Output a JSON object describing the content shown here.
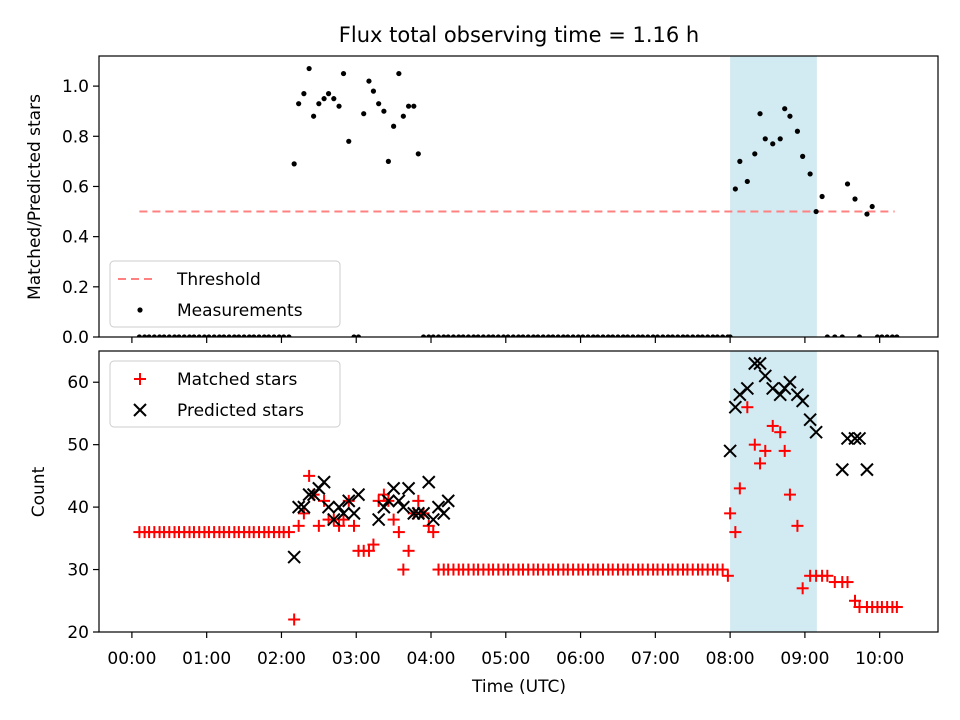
{
  "chart_data": {
    "type": "scatter",
    "title": "Flux total observing time = 1.16 h",
    "xlabel": "Time (UTC)",
    "x_unit": "hours",
    "xticks": [
      {
        "v": 0,
        "label": "00:00"
      },
      {
        "v": 1,
        "label": "01:00"
      },
      {
        "v": 2,
        "label": "02:00"
      },
      {
        "v": 3,
        "label": "03:00"
      },
      {
        "v": 4,
        "label": "04:00"
      },
      {
        "v": 5,
        "label": "05:00"
      },
      {
        "v": 6,
        "label": "06:00"
      },
      {
        "v": 7,
        "label": "07:00"
      },
      {
        "v": 8,
        "label": "08:00"
      },
      {
        "v": 9,
        "label": "09:00"
      },
      {
        "v": 10,
        "label": "10:00"
      }
    ],
    "xlim": [
      -0.44,
      10.78
    ],
    "highlight_span": {
      "x0": 8.0,
      "x1": 9.16,
      "color": "#add8e6"
    },
    "panels": [
      {
        "ylabel": "Matched/Predicted stars",
        "ylim": [
          0,
          1.12
        ],
        "yticks": [
          "0.0",
          "0.2",
          "0.4",
          "0.6",
          "0.8",
          "1.0"
        ],
        "ytick_values": [
          0,
          0.2,
          0.4,
          0.6,
          0.8,
          1.0
        ],
        "legend_position": "lower-left",
        "series": [
          {
            "name": "Threshold",
            "kind": "line",
            "color": "#ff8080",
            "x": [
              0.1,
              10.2
            ],
            "y": [
              0.5,
              0.5
            ]
          },
          {
            "name": "Measurements",
            "kind": "dot",
            "color": "#000000",
            "x": [
              0.1,
              0.17,
              0.23,
              0.3,
              0.37,
              0.43,
              0.5,
              0.57,
              0.63,
              0.7,
              0.77,
              0.83,
              0.9,
              0.97,
              1.03,
              1.1,
              1.17,
              1.23,
              1.3,
              1.37,
              1.43,
              1.5,
              1.57,
              1.63,
              1.7,
              1.77,
              1.83,
              1.9,
              1.97,
              2.03,
              2.1,
              2.17,
              2.23,
              2.3,
              2.37,
              2.43,
              2.5,
              2.57,
              2.63,
              2.7,
              2.77,
              2.83,
              2.9,
              2.97,
              3.03,
              3.1,
              3.17,
              3.23,
              3.3,
              3.37,
              3.43,
              3.5,
              3.57,
              3.63,
              3.7,
              3.77,
              3.83,
              3.9,
              3.97,
              4.03,
              4.1,
              4.17,
              4.23,
              4.3,
              4.37,
              4.43,
              4.5,
              4.57,
              4.63,
              4.7,
              4.77,
              4.83,
              4.9,
              4.97,
              5.03,
              5.1,
              5.17,
              5.23,
              5.3,
              5.37,
              5.43,
              5.5,
              5.57,
              5.63,
              5.7,
              5.77,
              5.83,
              5.9,
              5.97,
              6.03,
              6.1,
              6.17,
              6.23,
              6.3,
              6.37,
              6.43,
              6.5,
              6.57,
              6.63,
              6.7,
              6.77,
              6.83,
              6.9,
              6.97,
              7.03,
              7.1,
              7.17,
              7.23,
              7.3,
              7.37,
              7.43,
              7.5,
              7.57,
              7.63,
              7.7,
              7.77,
              7.83,
              7.9,
              7.97,
              8.0,
              8.07,
              8.13,
              8.23,
              8.33,
              8.4,
              8.47,
              8.57,
              8.67,
              8.73,
              8.8,
              8.9,
              8.97,
              9.07,
              9.15,
              9.23,
              9.3,
              9.4,
              9.5,
              9.57,
              9.67,
              9.73,
              9.83,
              9.9,
              9.97,
              10.03,
              10.1,
              10.17,
              10.23
            ],
            "y": [
              0,
              0,
              0,
              0,
              0,
              0,
              0,
              0,
              0,
              0,
              0,
              0,
              0,
              0,
              0,
              0,
              0,
              0,
              0,
              0,
              0,
              0,
              0,
              0,
              0,
              0,
              0,
              0,
              0,
              0,
              0,
              0.69,
              0.93,
              0.97,
              1.07,
              0.88,
              0.93,
              0.95,
              0.97,
              0.95,
              0.92,
              1.05,
              0.78,
              0,
              0,
              0.89,
              1.02,
              0.98,
              0.93,
              0.9,
              0.7,
              0.84,
              1.05,
              0.88,
              0.92,
              0.92,
              0.73,
              0,
              0,
              0,
              0,
              0,
              0,
              0,
              0,
              0,
              0,
              0,
              0,
              0,
              0,
              0,
              0,
              0,
              0,
              0,
              0,
              0,
              0,
              0,
              0,
              0,
              0,
              0,
              0,
              0,
              0,
              0,
              0,
              0,
              0,
              0,
              0,
              0,
              0,
              0,
              0,
              0,
              0,
              0,
              0,
              0,
              0,
              0,
              0,
              0,
              0,
              0,
              0,
              0,
              0,
              0,
              0,
              0,
              0,
              0,
              0,
              0,
              0,
              0,
              0.59,
              0.7,
              0.62,
              0.73,
              0.89,
              0.79,
              0.77,
              0.79,
              0.91,
              0.88,
              0.82,
              0.72,
              0.65,
              0.5,
              0.56,
              0,
              0,
              0,
              0.61,
              0.55,
              0,
              0.49,
              0.52,
              0,
              0,
              0,
              0,
              0
            ]
          }
        ]
      },
      {
        "ylabel": "Count",
        "ylim": [
          20,
          65
        ],
        "yticks": [
          "20",
          "30",
          "40",
          "50",
          "60"
        ],
        "ytick_values": [
          20,
          30,
          40,
          50,
          60
        ],
        "legend_position": "upper-left",
        "series": [
          {
            "name": "Matched stars",
            "kind": "plus",
            "color": "#ff0000",
            "x": [
              0.1,
              0.17,
              0.23,
              0.3,
              0.37,
              0.43,
              0.5,
              0.57,
              0.63,
              0.7,
              0.77,
              0.83,
              0.9,
              0.97,
              1.03,
              1.1,
              1.17,
              1.23,
              1.3,
              1.37,
              1.43,
              1.5,
              1.57,
              1.63,
              1.7,
              1.77,
              1.83,
              1.9,
              1.97,
              2.03,
              2.1,
              2.17,
              2.23,
              2.3,
              2.37,
              2.43,
              2.5,
              2.57,
              2.63,
              2.7,
              2.77,
              2.83,
              2.9,
              2.97,
              3.03,
              3.1,
              3.17,
              3.23,
              3.3,
              3.37,
              3.43,
              3.5,
              3.57,
              3.63,
              3.7,
              3.77,
              3.83,
              3.9,
              3.97,
              4.03,
              4.1,
              4.17,
              4.23,
              4.3,
              4.37,
              4.43,
              4.5,
              4.57,
              4.63,
              4.7,
              4.77,
              4.83,
              4.9,
              4.97,
              5.03,
              5.1,
              5.17,
              5.23,
              5.3,
              5.37,
              5.43,
              5.5,
              5.57,
              5.63,
              5.7,
              5.77,
              5.83,
              5.9,
              5.97,
              6.03,
              6.1,
              6.17,
              6.23,
              6.3,
              6.37,
              6.43,
              6.5,
              6.57,
              6.63,
              6.7,
              6.77,
              6.83,
              6.9,
              6.97,
              7.03,
              7.1,
              7.17,
              7.23,
              7.3,
              7.37,
              7.43,
              7.5,
              7.57,
              7.63,
              7.7,
              7.77,
              7.83,
              7.9,
              7.97,
              8.0,
              8.07,
              8.13,
              8.23,
              8.33,
              8.4,
              8.47,
              8.57,
              8.67,
              8.73,
              8.8,
              8.9,
              8.97,
              9.07,
              9.15,
              9.23,
              9.3,
              9.4,
              9.5,
              9.57,
              9.67,
              9.73,
              9.83,
              9.9,
              9.97,
              10.03,
              10.1,
              10.17,
              10.23
            ],
            "y": [
              36,
              36,
              36,
              36,
              36,
              36,
              36,
              36,
              36,
              36,
              36,
              36,
              36,
              36,
              36,
              36,
              36,
              36,
              36,
              36,
              36,
              36,
              36,
              36,
              36,
              36,
              36,
              36,
              36,
              36,
              36,
              22,
              37,
              39,
              45,
              42,
              37,
              41,
              38,
              38,
              37,
              38,
              41,
              37,
              33,
              33,
              33,
              34,
              41,
              42,
              41,
              38,
              36,
              30,
              33,
              39,
              41,
              39,
              37,
              36,
              30,
              30,
              30,
              30,
              30,
              30,
              30,
              30,
              30,
              30,
              30,
              30,
              30,
              30,
              30,
              30,
              30,
              30,
              30,
              30,
              30,
              30,
              30,
              30,
              30,
              30,
              30,
              30,
              30,
              30,
              30,
              30,
              30,
              30,
              30,
              30,
              30,
              30,
              30,
              30,
              30,
              30,
              30,
              30,
              30,
              30,
              30,
              30,
              30,
              30,
              30,
              30,
              30,
              30,
              30,
              30,
              30,
              30,
              29,
              39,
              36,
              43,
              56,
              50,
              47,
              49,
              53,
              52,
              49,
              42,
              37,
              27,
              29,
              29,
              29,
              29,
              28,
              28,
              28,
              25,
              24,
              24,
              24,
              24,
              24,
              24,
              24,
              24
            ],
            "note_omitted": ""
          },
          {
            "name": "Predicted stars",
            "kind": "x",
            "color": "#000000",
            "x": [
              2.17,
              2.23,
              2.3,
              2.37,
              2.43,
              2.5,
              2.57,
              2.63,
              2.7,
              2.77,
              2.83,
              2.9,
              2.97,
              3.03,
              3.3,
              3.37,
              3.43,
              3.5,
              3.57,
              3.63,
              3.7,
              3.77,
              3.83,
              3.9,
              3.97,
              4.03,
              4.1,
              4.17,
              4.23,
              8.0,
              8.07,
              8.13,
              8.23,
              8.33,
              8.4,
              8.47,
              8.57,
              8.67,
              8.73,
              8.8,
              8.9,
              8.97,
              9.07,
              9.15,
              9.5,
              9.57,
              9.67,
              9.73,
              9.83
            ],
            "y": [
              32,
              40,
              40,
              42,
              42,
              43,
              44,
              40,
              38,
              40,
              39,
              41,
              39,
              42,
              38,
              40,
              41,
              43,
              41,
              40,
              43,
              39,
              39,
              39,
              44,
              38,
              40,
              39,
              41,
              49,
              56,
              58,
              59,
              63,
              63,
              61,
              59,
              58,
              59,
              60,
              58,
              57,
              54,
              52,
              46,
              51,
              51,
              51,
              46
            ]
          }
        ]
      }
    ]
  }
}
